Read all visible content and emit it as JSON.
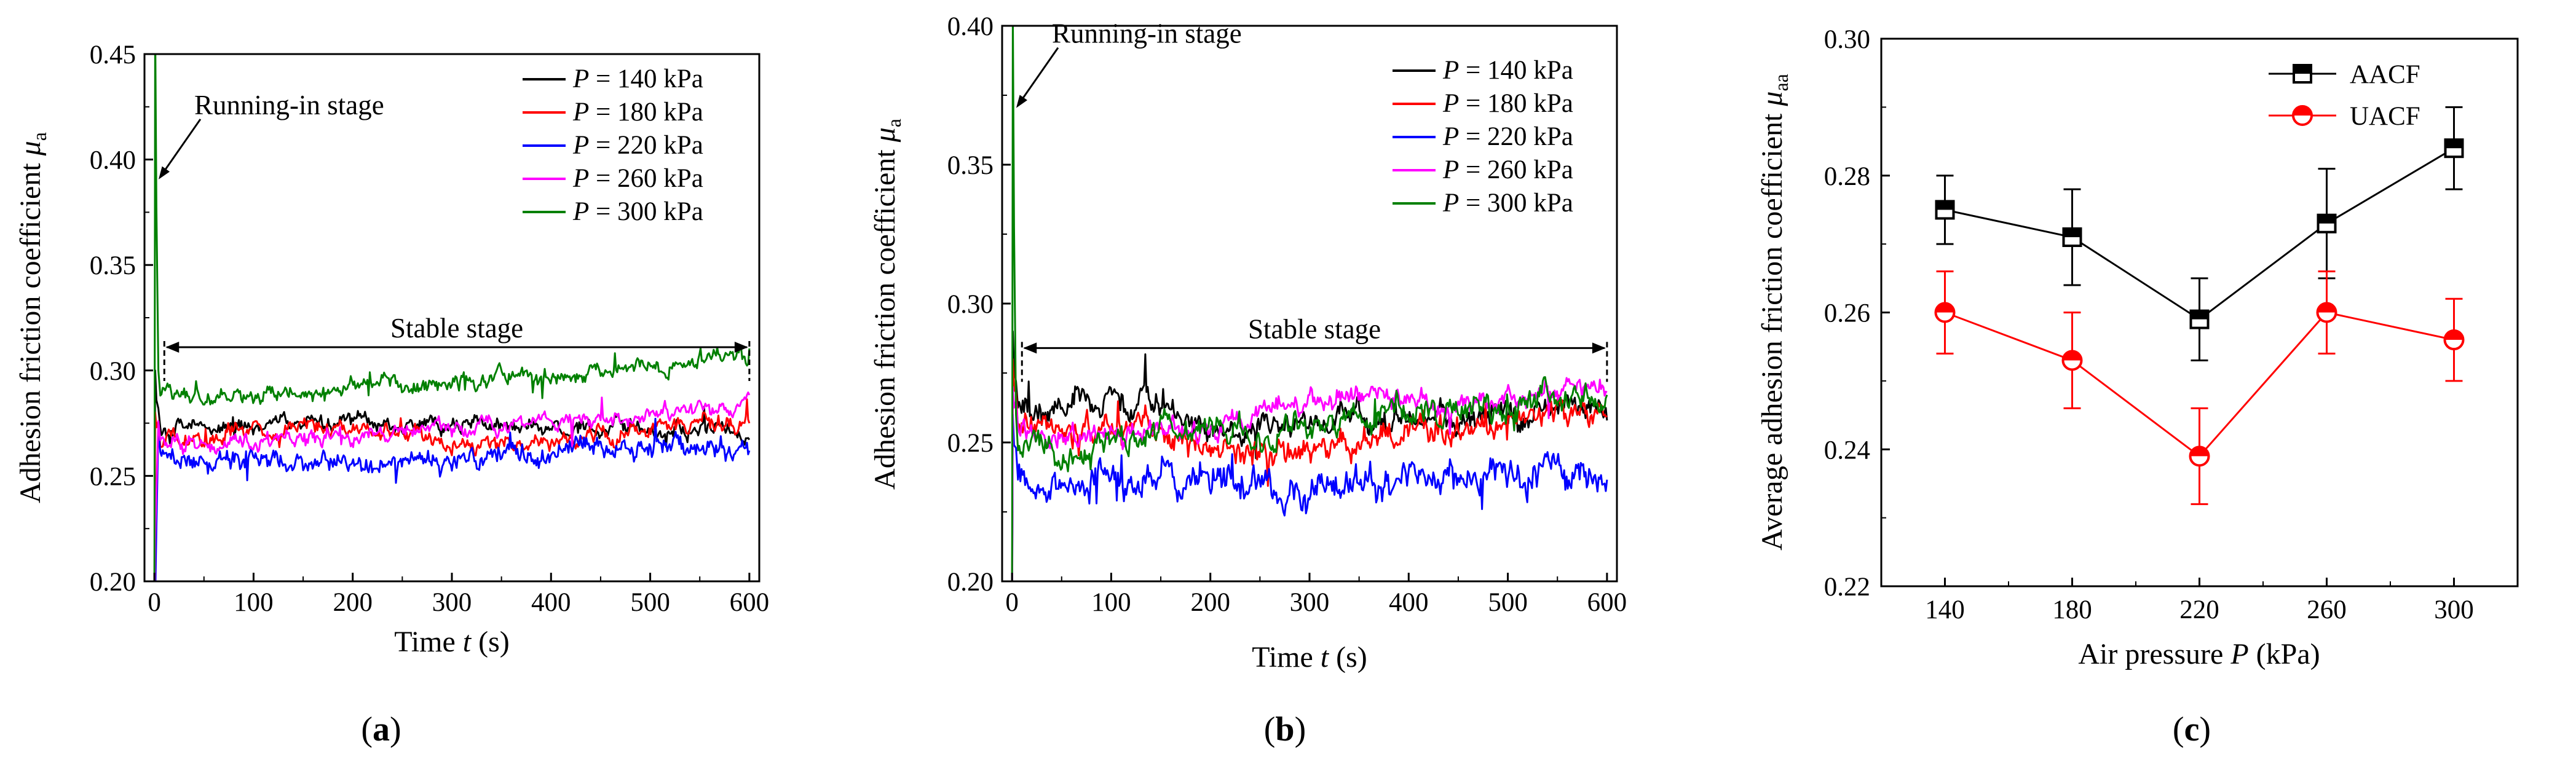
{
  "figure": {
    "panel_labels": [
      "(a)",
      "(b)",
      "(c)"
    ]
  },
  "chart_data": [
    {
      "panel": "(a)",
      "type": "line",
      "xlabel_prefix": "Time ",
      "xlabel_var": "t",
      "xlabel_unit": "  (s)",
      "ylabel_prefix": "Adhesion friction coefficient ",
      "ylabel_var": "μ",
      "ylabel_sub": "a",
      "xlim": [
        -10,
        610
      ],
      "ylim": [
        0.2,
        0.45
      ],
      "xticks": [
        0,
        100,
        200,
        300,
        400,
        500,
        600
      ],
      "yticks": [
        0.2,
        0.25,
        0.3,
        0.35,
        0.4,
        0.45
      ],
      "ytick_labels": [
        "0.20",
        "0.25",
        "0.30",
        "0.35",
        "0.40",
        "0.45"
      ],
      "legend_position": "top-right",
      "annotations": {
        "running_in_label": "Running-in stage",
        "running_in_point": [
          3,
          0.39
        ],
        "stable_label": "Stable stage",
        "stable_range": [
          10,
          600
        ],
        "stable_y": 0.311
      },
      "series": [
        {
          "name_var": "P",
          "name_rest": " = 140 kPa",
          "color": "#000000",
          "peak": 0.3,
          "anchors": [
            [
              8,
              0.272
            ],
            [
              50,
              0.273
            ],
            [
              100,
              0.274
            ],
            [
              150,
              0.275
            ],
            [
              200,
              0.277
            ],
            [
              250,
              0.276
            ],
            [
              300,
              0.275
            ],
            [
              350,
              0.274
            ],
            [
              400,
              0.273
            ],
            [
              450,
              0.273
            ],
            [
              500,
              0.272
            ],
            [
              550,
              0.273
            ],
            [
              600,
              0.27
            ]
          ],
          "noise": 0.004
        },
        {
          "name_var": "P",
          "name_rest": " = 180 kPa",
          "color": "#ff0000",
          "peak": 0.28,
          "anchors": [
            [
              8,
              0.266
            ],
            [
              50,
              0.268
            ],
            [
              100,
              0.271
            ],
            [
              150,
              0.273
            ],
            [
              200,
              0.272
            ],
            [
              250,
              0.269
            ],
            [
              300,
              0.266
            ],
            [
              350,
              0.265
            ],
            [
              400,
              0.267
            ],
            [
              450,
              0.27
            ],
            [
              500,
              0.273
            ],
            [
              550,
              0.276
            ],
            [
              600,
              0.275
            ]
          ],
          "noise": 0.004
        },
        {
          "name_var": "P",
          "name_rest": " = 220 kPa",
          "color": "#0000ff",
          "peak": 0.19,
          "anchors": [
            [
              8,
              0.262
            ],
            [
              50,
              0.259
            ],
            [
              100,
              0.258
            ],
            [
              150,
              0.257
            ],
            [
              200,
              0.256
            ],
            [
              250,
              0.257
            ],
            [
              300,
              0.258
            ],
            [
              350,
              0.259
            ],
            [
              400,
              0.261
            ],
            [
              450,
              0.262
            ],
            [
              500,
              0.263
            ],
            [
              550,
              0.263
            ],
            [
              600,
              0.262
            ]
          ],
          "noise": 0.005
        },
        {
          "name_var": "P",
          "name_rest": " = 260 kPa",
          "color": "#ff00ff",
          "peak": 0.22,
          "anchors": [
            [
              8,
              0.266
            ],
            [
              50,
              0.264
            ],
            [
              100,
              0.266
            ],
            [
              150,
              0.268
            ],
            [
              200,
              0.269
            ],
            [
              250,
              0.271
            ],
            [
              300,
              0.272
            ],
            [
              350,
              0.273
            ],
            [
              400,
              0.275
            ],
            [
              450,
              0.277
            ],
            [
              500,
              0.279
            ],
            [
              550,
              0.281
            ],
            [
              600,
              0.283
            ]
          ],
          "noise": 0.004
        },
        {
          "name_var": "P",
          "name_rest": " = 300 kPa",
          "color": "#008000",
          "peak": 0.465,
          "anchors": [
            [
              8,
              0.29
            ],
            [
              50,
              0.287
            ],
            [
              100,
              0.286
            ],
            [
              150,
              0.29
            ],
            [
              200,
              0.294
            ],
            [
              250,
              0.293
            ],
            [
              300,
              0.295
            ],
            [
              350,
              0.297
            ],
            [
              400,
              0.298
            ],
            [
              450,
              0.3
            ],
            [
              500,
              0.302
            ],
            [
              550,
              0.305
            ],
            [
              590,
              0.31
            ],
            [
              600,
              0.298
            ]
          ],
          "noise": 0.004
        }
      ]
    },
    {
      "panel": "(b)",
      "type": "line",
      "xlabel_prefix": "Time ",
      "xlabel_var": "t",
      "xlabel_unit": "  (s)",
      "ylabel_prefix": "Adhesion friction coefficient ",
      "ylabel_var": "μ",
      "ylabel_sub": "a",
      "xlim": [
        -10,
        610
      ],
      "ylim": [
        0.2,
        0.4
      ],
      "xticks": [
        0,
        100,
        200,
        300,
        400,
        500,
        600
      ],
      "yticks": [
        0.2,
        0.25,
        0.3,
        0.35,
        0.4
      ],
      "ytick_labels": [
        "0.20",
        "0.25",
        "0.30",
        "0.35",
        "0.40"
      ],
      "legend_position": "top-right",
      "annotations": {
        "running_in_label": "Running-in stage",
        "running_in_point": [
          3,
          0.37
        ],
        "stable_label": "Stable stage",
        "stable_range": [
          10,
          600
        ],
        "stable_y": 0.284
      },
      "series": [
        {
          "name_var": "P",
          "name_rest": " = 140 kPa",
          "color": "#000000",
          "peak": 0.29,
          "anchors": [
            [
              8,
              0.262
            ],
            [
              50,
              0.262
            ],
            [
              100,
              0.268
            ],
            [
              150,
              0.264
            ],
            [
              200,
              0.258
            ],
            [
              250,
              0.255
            ],
            [
              300,
              0.256
            ],
            [
              350,
              0.258
            ],
            [
              400,
              0.257
            ],
            [
              450,
              0.256
            ],
            [
              500,
              0.258
            ],
            [
              550,
              0.262
            ],
            [
              600,
              0.263
            ]
          ],
          "noise": 0.005
        },
        {
          "name_var": "P",
          "name_rest": " = 180 kPa",
          "color": "#ff0000",
          "peak": 0.28,
          "anchors": [
            [
              8,
              0.258
            ],
            [
              50,
              0.256
            ],
            [
              100,
              0.255
            ],
            [
              150,
              0.254
            ],
            [
              200,
              0.25
            ],
            [
              250,
              0.245
            ],
            [
              300,
              0.246
            ],
            [
              350,
              0.251
            ],
            [
              400,
              0.255
            ],
            [
              450,
              0.253
            ],
            [
              500,
              0.256
            ],
            [
              550,
              0.262
            ],
            [
              600,
              0.265
            ]
          ],
          "noise": 0.005
        },
        {
          "name_var": "P",
          "name_rest": " = 220 kPa",
          "color": "#0000ff",
          "peak": 0.26,
          "anchors": [
            [
              8,
              0.238
            ],
            [
              50,
              0.234
            ],
            [
              100,
              0.235
            ],
            [
              150,
              0.238
            ],
            [
              200,
              0.236
            ],
            [
              250,
              0.234
            ],
            [
              300,
              0.233
            ],
            [
              350,
              0.236
            ],
            [
              400,
              0.238
            ],
            [
              450,
              0.237
            ],
            [
              500,
              0.238
            ],
            [
              550,
              0.24
            ],
            [
              600,
              0.238
            ]
          ],
          "noise": 0.006
        },
        {
          "name_var": "P",
          "name_rest": " = 260 kPa",
          "color": "#ff00ff",
          "peak": 0.27,
          "anchors": [
            [
              8,
              0.255
            ],
            [
              50,
              0.253
            ],
            [
              100,
              0.252
            ],
            [
              150,
              0.254
            ],
            [
              200,
              0.256
            ],
            [
              250,
              0.263
            ],
            [
              300,
              0.266
            ],
            [
              350,
              0.267
            ],
            [
              400,
              0.266
            ],
            [
              450,
              0.265
            ],
            [
              500,
              0.266
            ],
            [
              550,
              0.268
            ],
            [
              600,
              0.269
            ]
          ],
          "noise": 0.004
        },
        {
          "name_var": "P",
          "name_rest": " = 300 kPa",
          "color": "#008000",
          "peak": 0.405,
          "anchors": [
            [
              8,
              0.25
            ],
            [
              50,
              0.245
            ],
            [
              100,
              0.25
            ],
            [
              150,
              0.255
            ],
            [
              200,
              0.256
            ],
            [
              250,
              0.252
            ],
            [
              300,
              0.255
            ],
            [
              350,
              0.26
            ],
            [
              400,
              0.262
            ],
            [
              450,
              0.258
            ],
            [
              500,
              0.262
            ],
            [
              550,
              0.266
            ],
            [
              600,
              0.264
            ]
          ],
          "noise": 0.005
        }
      ]
    },
    {
      "panel": "(c)",
      "type": "line",
      "xlabel_prefix": "Air pressure ",
      "xlabel_var": "P",
      "xlabel_unit": " (kPa)",
      "ylabel_prefix": "Average adhesion friction coefficient ",
      "ylabel_var": "μ",
      "ylabel_sub": "aa",
      "categories": [
        140,
        180,
        220,
        260,
        300
      ],
      "xlim": [
        120,
        320
      ],
      "ylim": [
        0.22,
        0.3
      ],
      "yticks": [
        0.22,
        0.24,
        0.26,
        0.28,
        0.3
      ],
      "ytick_labels": [
        "0.22",
        "0.24",
        "0.26",
        "0.28",
        "0.30"
      ],
      "legend_position": "top-right",
      "series": [
        {
          "name": "AACF",
          "color": "#000000",
          "marker": "square-half",
          "values": [
            0.275,
            0.271,
            0.259,
            0.273,
            0.284
          ],
          "error": [
            0.005,
            0.007,
            0.006,
            0.008,
            0.006
          ]
        },
        {
          "name": "UACF",
          "color": "#ff0000",
          "marker": "circle-half",
          "values": [
            0.26,
            0.253,
            0.239,
            0.26,
            0.256
          ],
          "error": [
            0.006,
            0.007,
            0.007,
            0.006,
            0.006
          ]
        }
      ]
    }
  ]
}
